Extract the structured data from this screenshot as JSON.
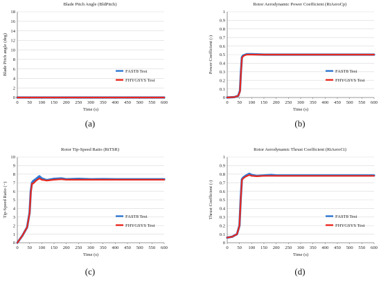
{
  "colors": {
    "fast8": "#2e78d2",
    "fhygsys": "#e8281e",
    "axis": "#777777",
    "grid": "#d9d9d9"
  },
  "chart_data": [
    {
      "type": "line",
      "title": "Blade Pitch Angle (BldPitch)",
      "xlabel": "Time (s)",
      "ylabel": "Blade Pitch angle (deg)",
      "panel_label": "(a)",
      "xlim": [
        0,
        600
      ],
      "ylim": [
        0,
        18
      ],
      "xticks": [
        0,
        50,
        100,
        150,
        200,
        250,
        300,
        350,
        400,
        450,
        500,
        550,
        600
      ],
      "yticks": [
        0,
        2,
        4,
        6,
        8,
        10,
        12,
        14,
        16,
        18
      ],
      "legend_position": "right",
      "series": [
        {
          "name": "FAST8 Test",
          "color": "#2e78d2",
          "x": [
            0,
            600
          ],
          "y": [
            0,
            0
          ]
        },
        {
          "name": "FHYGSYS Test",
          "color": "#e8281e",
          "x": [
            0,
            600
          ],
          "y": [
            0,
            0
          ]
        }
      ]
    },
    {
      "type": "line",
      "title": "Rotor Aerodynamic Power Coefficient (RtAeroCp)",
      "xlabel": "Time (s)",
      "ylabel": "Power Coefficient (-)",
      "panel_label": "(b)",
      "xlim": [
        0,
        600
      ],
      "ylim": [
        0,
        1
      ],
      "xticks": [
        0,
        50,
        100,
        150,
        200,
        250,
        300,
        350,
        400,
        450,
        500,
        550,
        600
      ],
      "yticks": [
        0,
        0.1,
        0.2,
        0.3,
        0.4,
        0.5,
        0.6,
        0.7,
        0.8,
        0.9,
        1
      ],
      "legend_position": "right",
      "series": [
        {
          "name": "FAST8 Test",
          "color": "#2e78d2",
          "x": [
            0,
            30,
            45,
            52,
            56,
            60,
            65,
            70,
            80,
            100,
            150,
            200,
            300,
            400,
            500,
            600
          ],
          "y": [
            0,
            0.005,
            0.02,
            0.08,
            0.3,
            0.47,
            0.49,
            0.495,
            0.505,
            0.505,
            0.5,
            0.5,
            0.5,
            0.5,
            0.5,
            0.5
          ]
        },
        {
          "name": "FHYGSYS Test",
          "color": "#e8281e",
          "x": [
            0,
            30,
            45,
            52,
            56,
            60,
            65,
            70,
            80,
            100,
            150,
            200,
            300,
            400,
            500,
            600
          ],
          "y": [
            0,
            0.005,
            0.02,
            0.07,
            0.28,
            0.46,
            0.48,
            0.49,
            0.5,
            0.5,
            0.5,
            0.5,
            0.5,
            0.5,
            0.5,
            0.5
          ]
        }
      ]
    },
    {
      "type": "line",
      "title": "Rotor Tip-Speed Ratio (RtTSR)",
      "xlabel": "Time (s)",
      "ylabel": "Tip-Speed Ratio (−)",
      "panel_label": "(c)",
      "xlim": [
        0,
        600
      ],
      "ylim": [
        0,
        10
      ],
      "xticks": [
        0,
        50,
        100,
        150,
        200,
        250,
        300,
        350,
        400,
        450,
        500,
        550,
        600
      ],
      "yticks": [
        0,
        1,
        2,
        3,
        4,
        5,
        6,
        7,
        8,
        9,
        10
      ],
      "legend_position": "right",
      "series": [
        {
          "name": "FAST8 Test",
          "color": "#2e78d2",
          "x": [
            0,
            20,
            40,
            50,
            55,
            60,
            65,
            75,
            90,
            100,
            120,
            150,
            180,
            200,
            250,
            300,
            350,
            400,
            500,
            600
          ],
          "y": [
            0,
            0.8,
            1.8,
            3.5,
            6.0,
            7.0,
            7.2,
            7.4,
            7.75,
            7.5,
            7.3,
            7.45,
            7.5,
            7.4,
            7.45,
            7.4,
            7.42,
            7.4,
            7.4,
            7.4
          ]
        },
        {
          "name": "FHYGSYS Test",
          "color": "#e8281e",
          "x": [
            0,
            20,
            40,
            50,
            55,
            60,
            65,
            75,
            90,
            100,
            120,
            150,
            180,
            200,
            250,
            300,
            350,
            400,
            500,
            600
          ],
          "y": [
            0,
            0.8,
            1.8,
            3.4,
            5.8,
            6.9,
            6.9,
            7.2,
            7.5,
            7.35,
            7.25,
            7.35,
            7.4,
            7.35,
            7.35,
            7.35,
            7.35,
            7.35,
            7.35,
            7.35
          ]
        }
      ]
    },
    {
      "type": "line",
      "title": "Rotor Aerodynamic Thrust Coefficient (RtAeroCt)",
      "xlabel": "Time (s)",
      "ylabel": "Thrust Coefficient (-)",
      "panel_label": "(d)",
      "xlim": [
        0,
        600
      ],
      "ylim": [
        0,
        1
      ],
      "xticks": [
        0,
        50,
        100,
        150,
        200,
        250,
        300,
        350,
        400,
        450,
        500,
        550,
        600
      ],
      "yticks": [
        0,
        0.1,
        0.2,
        0.3,
        0.4,
        0.5,
        0.6,
        0.7,
        0.8,
        0.9,
        1
      ],
      "legend_position": "right",
      "series": [
        {
          "name": "FAST8 Test",
          "color": "#2e78d2",
          "x": [
            0,
            20,
            40,
            50,
            55,
            60,
            65,
            75,
            90,
            100,
            120,
            150,
            180,
            200,
            250,
            300,
            400,
            500,
            600
          ],
          "y": [
            0.06,
            0.07,
            0.1,
            0.2,
            0.5,
            0.74,
            0.76,
            0.78,
            0.805,
            0.79,
            0.78,
            0.785,
            0.79,
            0.785,
            0.785,
            0.785,
            0.785,
            0.785,
            0.785
          ]
        },
        {
          "name": "FHYGSYS Test",
          "color": "#e8281e",
          "x": [
            0,
            20,
            40,
            50,
            55,
            60,
            65,
            75,
            90,
            100,
            120,
            150,
            180,
            200,
            250,
            300,
            400,
            500,
            600
          ],
          "y": [
            0.06,
            0.07,
            0.1,
            0.2,
            0.48,
            0.73,
            0.75,
            0.77,
            0.79,
            0.78,
            0.775,
            0.78,
            0.78,
            0.78,
            0.78,
            0.78,
            0.78,
            0.78,
            0.78
          ]
        }
      ]
    }
  ]
}
